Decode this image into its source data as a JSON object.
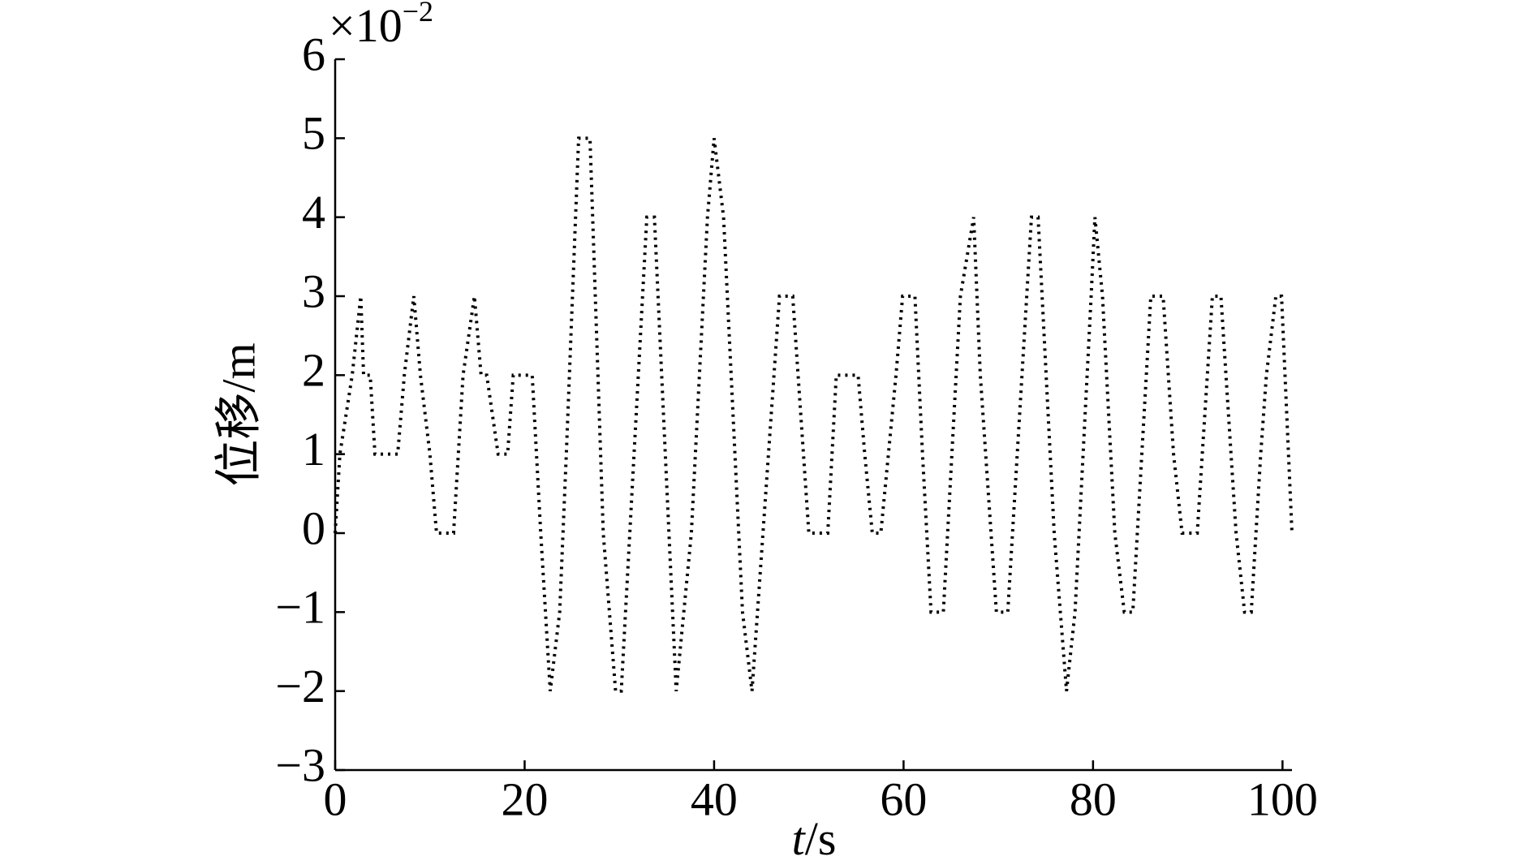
{
  "chart_data": {
    "type": "line",
    "multiplier": {
      "base": "×10",
      "exponent": "−2"
    },
    "ylabel": "位移/m",
    "xlabel": {
      "var": "t",
      "unit": "/s"
    },
    "xlim": [
      0,
      101
    ],
    "xticks": [
      0,
      20,
      40,
      60,
      80,
      100
    ],
    "ylim": [
      -3,
      6
    ],
    "yticks": [
      {
        "value": -3,
        "label": "−3"
      },
      {
        "value": -2,
        "label": "−2"
      },
      {
        "value": -1,
        "label": "−1"
      },
      0,
      1,
      2,
      3,
      4,
      5,
      6
    ],
    "series": [
      {
        "color": "#000000",
        "x": [
          0,
          0.5,
          1.8,
          2.7,
          3,
          3.7,
          4.2,
          6.6,
          7.3,
          8.3,
          9,
          10,
          10.7,
          12.5,
          13.5,
          14.7,
          15.4,
          16,
          17.2,
          18.2,
          18.8,
          20.8,
          21.7,
          22.7,
          23.7,
          24.4,
          25.7,
          26.9,
          28.3,
          29.6,
          30.2,
          32.9,
          33.7,
          36,
          37.6,
          39.3,
          40,
          41,
          43,
          44,
          46.9,
          48.3,
          50,
          52,
          52.9,
          55.2,
          55.9,
          56.7,
          57.6,
          59.2,
          59.9,
          61.2,
          62,
          62.9,
          64.2,
          66,
          67.4,
          68.1,
          69.8,
          71,
          73.5,
          74.2,
          75.9,
          77.2,
          78.1,
          79.8,
          80.2,
          81,
          82.3,
          83.3,
          84.2,
          86.1,
          87.4,
          88.5,
          89.4,
          91,
          92.6,
          93.5,
          95.1,
          96,
          96.7,
          97.7,
          98.3,
          99.3,
          99.9,
          101
        ],
        "values": [
          0,
          1,
          2,
          3,
          2,
          2,
          1,
          1,
          2,
          3,
          2,
          1,
          0,
          0,
          2,
          3,
          2,
          2,
          1,
          1,
          2,
          2,
          0,
          -2,
          -1,
          1,
          5,
          5,
          0,
          -2,
          -2,
          4,
          4,
          -2,
          0,
          4,
          5,
          4,
          -1,
          -2,
          3,
          3,
          0,
          0,
          2,
          2,
          1,
          0,
          0,
          2,
          3,
          3,
          1,
          -1,
          -1,
          3,
          4,
          2,
          -1,
          -1,
          4,
          4,
          0,
          -2,
          -1,
          3,
          4,
          3,
          0,
          -1,
          -1,
          3,
          3,
          1,
          0,
          0,
          3,
          3,
          0,
          -1,
          -1,
          1,
          2,
          3,
          3,
          0
        ]
      }
    ]
  }
}
